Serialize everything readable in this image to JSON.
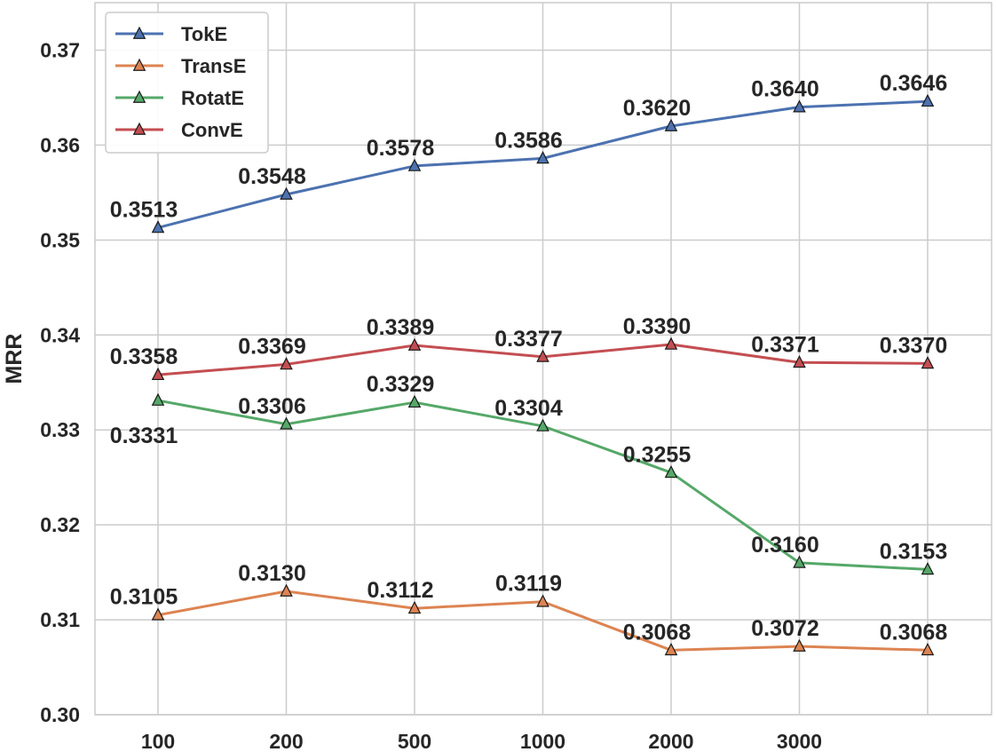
{
  "chart_data": {
    "type": "line",
    "title": "",
    "xlabel": "",
    "ylabel": "MRR",
    "categories": [
      "100",
      "200",
      "500",
      "1000",
      "2000",
      "3000",
      ""
    ],
    "ylim": [
      0.3,
      0.375
    ],
    "yticks": [
      "0.30",
      "0.31",
      "0.32",
      "0.33",
      "0.34",
      "0.35",
      "0.36",
      "0.37"
    ],
    "grid": true,
    "legend_position": "top-left",
    "series": [
      {
        "name": "TokE",
        "color": "#4c72b0",
        "marker": "triangle",
        "values": [
          0.3513,
          0.3548,
          0.3578,
          0.3586,
          0.362,
          0.364,
          0.3646
        ],
        "labels": [
          "0.3513",
          "0.3548",
          "0.3578",
          "0.3586",
          "0.3620",
          "0.3640",
          "0.3646"
        ],
        "label_side": [
          "above",
          "above",
          "above",
          "above",
          "above",
          "above",
          "above"
        ]
      },
      {
        "name": "TransE",
        "color": "#dd8452",
        "marker": "triangle",
        "values": [
          0.3105,
          0.313,
          0.3112,
          0.3119,
          0.3068,
          0.3072,
          0.3068
        ],
        "labels": [
          "0.3105",
          "0.3130",
          "0.3112",
          "0.3119",
          "0.3068",
          "0.3072",
          "0.3068"
        ],
        "label_side": [
          "above",
          "above",
          "above",
          "above",
          "above",
          "above",
          "above"
        ]
      },
      {
        "name": "RotatE",
        "color": "#55a868",
        "marker": "triangle",
        "values": [
          0.3331,
          0.3306,
          0.3329,
          0.3304,
          0.3255,
          0.316,
          0.3153
        ],
        "labels": [
          "0.3331",
          "0.3306",
          "0.3329",
          "0.3304",
          "0.3255",
          "0.3160",
          "0.3153"
        ],
        "label_side": [
          "below",
          "above",
          "above",
          "above",
          "above",
          "above",
          "above"
        ]
      },
      {
        "name": "ConvE",
        "color": "#c44e52",
        "marker": "triangle",
        "values": [
          0.3358,
          0.3369,
          0.3389,
          0.3377,
          0.339,
          0.3371,
          0.337
        ],
        "labels": [
          "0.3358",
          "0.3369",
          "0.3389",
          "0.3377",
          "0.3390",
          "0.3371",
          "0.3370"
        ],
        "label_side": [
          "above",
          "above",
          "above",
          "above",
          "above",
          "above",
          "above"
        ]
      }
    ]
  }
}
